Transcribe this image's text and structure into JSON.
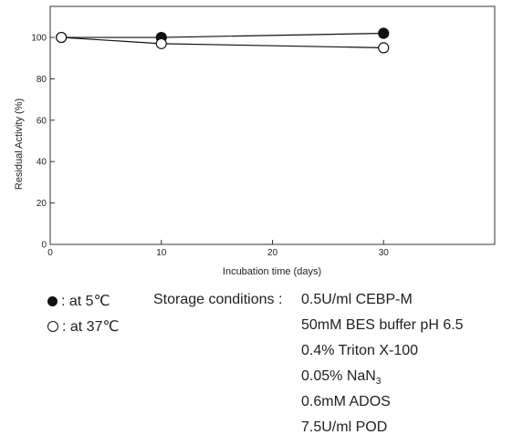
{
  "chart_data": {
    "type": "line",
    "xlabel": "Incubation time (days)",
    "ylabel": "Residual Activity (%)",
    "xlim": [
      0,
      40
    ],
    "ylim": [
      0,
      115
    ],
    "xticks": [
      0,
      10,
      20,
      30
    ],
    "yticks": [
      0,
      20,
      40,
      60,
      80,
      100
    ],
    "grid": false,
    "series": [
      {
        "name": ": at 5℃",
        "marker": "filled-circle",
        "x": [
          1,
          10,
          30
        ],
        "values": [
          100,
          100,
          102
        ]
      },
      {
        "name": ": at 37℃",
        "marker": "open-circle",
        "x": [
          1,
          10,
          30
        ],
        "values": [
          100,
          97,
          95
        ]
      }
    ]
  },
  "legend": {
    "filled_label": ": at 5℃",
    "open_label": ": at 37℃"
  },
  "conditions": {
    "label": "Storage conditions :",
    "items": [
      "0.5U/ml CEBP-M",
      "50mM BES buffer pH 6.5",
      "0.4% Triton X-100",
      "0.05% NaN",
      "0.6mM ADOS",
      "7.5U/ml POD"
    ],
    "nan_subscript": "3"
  }
}
